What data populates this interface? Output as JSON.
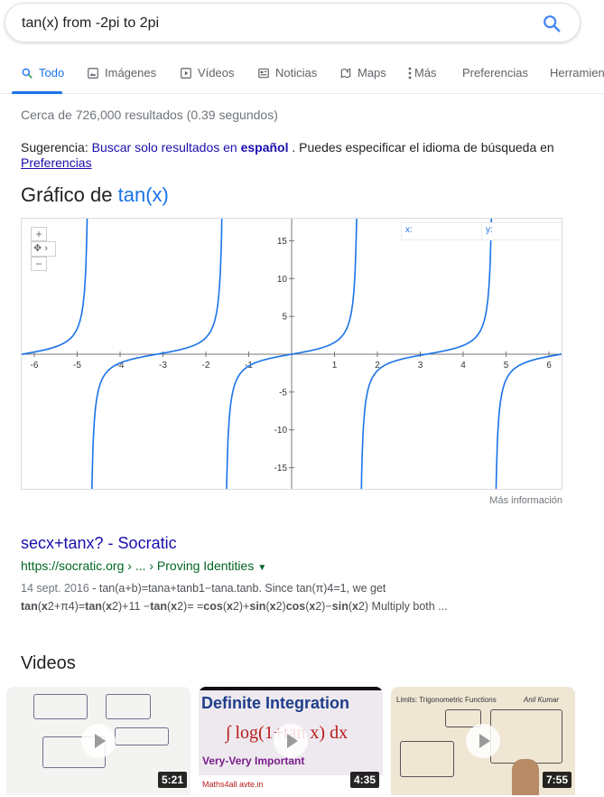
{
  "search": {
    "query": "tan(x) from -2pi to 2pi"
  },
  "tabs": [
    {
      "label": "Todo",
      "icon": "search-icon",
      "active": true
    },
    {
      "label": "Imágenes",
      "icon": "image-icon"
    },
    {
      "label": "Vídeos",
      "icon": "video-icon"
    },
    {
      "label": "Noticias",
      "icon": "news-icon"
    },
    {
      "label": "Maps",
      "icon": "map-icon"
    },
    {
      "label": "Más",
      "icon": "more-vert-icon"
    },
    {
      "label": "Preferencias"
    },
    {
      "label": "Herramien"
    }
  ],
  "stats": "Cerca de 726,000 resultados (0.39 segundos)",
  "suggestion": {
    "prefix": "Sugerencia:",
    "link": "Buscar solo resultados en",
    "lang": "español",
    "middle": ". Puedes especificar el idioma de búsqueda en",
    "pref_link": "Preferencias"
  },
  "graph": {
    "title_prefix": "Gráfico de",
    "function": "tan(x)",
    "x_readout": "x:",
    "y_readout": "y:",
    "more_info": "Más información",
    "zoom_in": "+",
    "zoom_out": "−"
  },
  "chart_data": {
    "type": "line",
    "series": [
      {
        "name": "tan(x)",
        "expression": "tan(x)",
        "color": "#1a73e8"
      }
    ],
    "xlim": [
      -6.3,
      6.3
    ],
    "ylim": [
      -18,
      18
    ],
    "xticks": [
      -6,
      -5,
      -4,
      -3,
      -2,
      -1,
      1,
      2,
      3,
      4,
      5,
      6
    ],
    "yticks": [
      -15,
      -10,
      -5,
      5,
      10,
      15
    ],
    "grid": false
  },
  "result": {
    "title": "secx+tanx? - Socratic",
    "url": "https://socratic.org › ... › Proving Identities",
    "date": "14 sept. 2016",
    "snippet1": " - tan(a+b)=tana+tanb1−tana.tanb. Since tan(π)4=1, we get",
    "snippet2_html": "<b>tan</b>(<b>x</b>2+π4)=<b>tan</b>(<b>x</b>2)+11 −<b>tan</b>(<b>x</b>2)= =<b>cos</b>(<b>x</b>2)+<b>sin</b>(<b>x</b>2)<b>cos</b>(<b>x</b>2)−<b>sin</b>(<b>x</b>2) Multiply both ..."
  },
  "videos": {
    "heading": "Videos",
    "items": [
      {
        "duration": "5:21"
      },
      {
        "duration": "4:35",
        "title": "Definite Integration",
        "subtitle": "Very-Very Important",
        "formula": "log(1+tan x) dx",
        "footer": "Maths4all   avte.in"
      },
      {
        "duration": "7:55",
        "header": "Limits: Trigonometric Functions",
        "author": "Anil Kumar"
      }
    ]
  }
}
